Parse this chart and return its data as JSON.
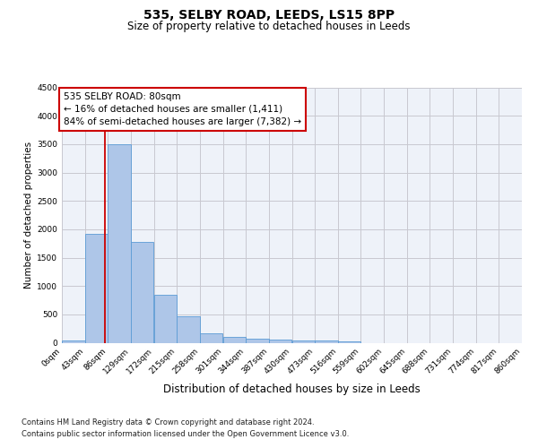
{
  "title": "535, SELBY ROAD, LEEDS, LS15 8PP",
  "subtitle": "Size of property relative to detached houses in Leeds",
  "xlabel": "Distribution of detached houses by size in Leeds",
  "ylabel": "Number of detached properties",
  "footnote1": "Contains HM Land Registry data © Crown copyright and database right 2024.",
  "footnote2": "Contains public sector information licensed under the Open Government Licence v3.0.",
  "annotation_title": "535 SELBY ROAD: 80sqm",
  "annotation_line1": "← 16% of detached houses are smaller (1,411)",
  "annotation_line2": "84% of semi-detached houses are larger (7,382) →",
  "property_size_sqm": 80,
  "bin_width": 43,
  "bin_starts": [
    0,
    43,
    86,
    129,
    172,
    215,
    258,
    301,
    344,
    387,
    430,
    473,
    516,
    559,
    602,
    645,
    688,
    731,
    774,
    817
  ],
  "bar_values": [
    40,
    1920,
    3500,
    1770,
    840,
    460,
    160,
    100,
    70,
    55,
    45,
    40,
    30,
    0,
    0,
    0,
    0,
    0,
    0,
    0
  ],
  "bar_fill": "#aec6e8",
  "bar_edge": "#5b9bd5",
  "vline_color": "#cc0000",
  "grid_color": "#c8c8d0",
  "bg_color": "#eef2f9",
  "box_edge_color": "#cc0000",
  "ylim_max": 4500,
  "ytick_step": 500,
  "xtick_labels": [
    "0sqm",
    "43sqm",
    "86sqm",
    "129sqm",
    "172sqm",
    "215sqm",
    "258sqm",
    "301sqm",
    "344sqm",
    "387sqm",
    "430sqm",
    "473sqm",
    "516sqm",
    "559sqm",
    "602sqm",
    "645sqm",
    "688sqm",
    "731sqm",
    "774sqm",
    "817sqm",
    "860sqm"
  ],
  "title_fs": 10,
  "subtitle_fs": 8.5,
  "xlabel_fs": 8.5,
  "ylabel_fs": 7.5,
  "tick_fs": 6.5,
  "annot_fs": 7.5,
  "foot_fs": 6.0
}
